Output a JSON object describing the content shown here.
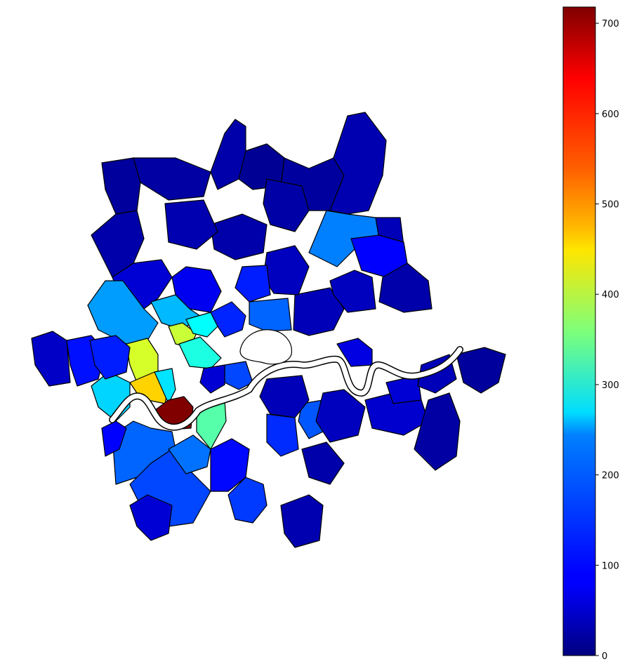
{
  "chart_data": {
    "type": "choropleth",
    "title": "",
    "colormap": "jet",
    "colorbar": {
      "min": 0,
      "max": 718,
      "ticks": [
        0,
        100,
        200,
        300,
        400,
        500,
        600,
        700
      ],
      "tick_labels": [
        "0",
        "100",
        "200",
        "300",
        "400",
        "500",
        "600",
        "700"
      ],
      "placement": "right"
    },
    "regions": [
      {
        "id": "r01",
        "value": 20
      },
      {
        "id": "r02",
        "value": 25
      },
      {
        "id": "r03",
        "value": 30
      },
      {
        "id": "r04",
        "value": 15
      },
      {
        "id": "r05",
        "value": 22
      },
      {
        "id": "r06",
        "value": 35
      },
      {
        "id": "r07",
        "value": 180
      },
      {
        "id": "r08",
        "value": 40
      },
      {
        "id": "r09",
        "value": 30
      },
      {
        "id": "r10",
        "value": 60
      },
      {
        "id": "r11",
        "value": 80
      },
      {
        "id": "r12",
        "value": 200
      },
      {
        "id": "r13",
        "value": 220
      },
      {
        "id": "r14",
        "value": 410
      },
      {
        "id": "r15",
        "value": 270
      },
      {
        "id": "r16",
        "value": 290
      },
      {
        "id": "r17",
        "value": 115
      },
      {
        "id": "r18",
        "value": 420
      },
      {
        "id": "r19",
        "value": 480
      },
      {
        "id": "r20",
        "value": 250
      },
      {
        "id": "r21",
        "value": 718
      },
      {
        "id": "r22",
        "value": 330
      },
      {
        "id": "r23",
        "value": 160
      },
      {
        "id": "r24",
        "value": 140
      },
      {
        "id": "r25",
        "value": 240
      },
      {
        "id": "r26",
        "value": 90
      },
      {
        "id": "r27",
        "value": 170
      },
      {
        "id": "r28",
        "value": 60
      },
      {
        "id": "r29",
        "value": 95
      },
      {
        "id": "r30",
        "value": 130
      },
      {
        "id": "r31",
        "value": 35
      },
      {
        "id": "r32",
        "value": 50
      },
      {
        "id": "r33",
        "value": 160
      },
      {
        "id": "r34",
        "value": 40
      },
      {
        "id": "r35",
        "value": 45
      },
      {
        "id": "r36",
        "value": 90
      },
      {
        "id": "r37",
        "value": 30
      },
      {
        "id": "r38",
        "value": 70
      },
      {
        "id": "r39",
        "value": 150
      },
      {
        "id": "r40",
        "value": 45
      },
      {
        "id": "r41",
        "value": 55
      },
      {
        "id": "r42",
        "value": 25
      },
      {
        "id": "r43",
        "value": 60
      },
      {
        "id": "r44",
        "value": 40
      },
      {
        "id": "r45",
        "value": 20
      },
      {
        "id": "r46",
        "value": 100
      },
      {
        "id": "r47",
        "value": 110
      },
      {
        "id": "r48",
        "value": 30
      },
      {
        "id": "r49",
        "value": 35
      },
      {
        "id": "r50",
        "value": 28
      },
      {
        "id": "r51",
        "value": 45
      },
      {
        "id": "r52",
        "value": 110
      },
      {
        "id": "r53",
        "value": 40
      },
      {
        "id": "r54",
        "value": 120
      },
      {
        "id": "r55",
        "value": 140
      },
      {
        "id": "r56",
        "value": 60
      },
      {
        "id": "r57",
        "value": 30
      }
    ]
  }
}
